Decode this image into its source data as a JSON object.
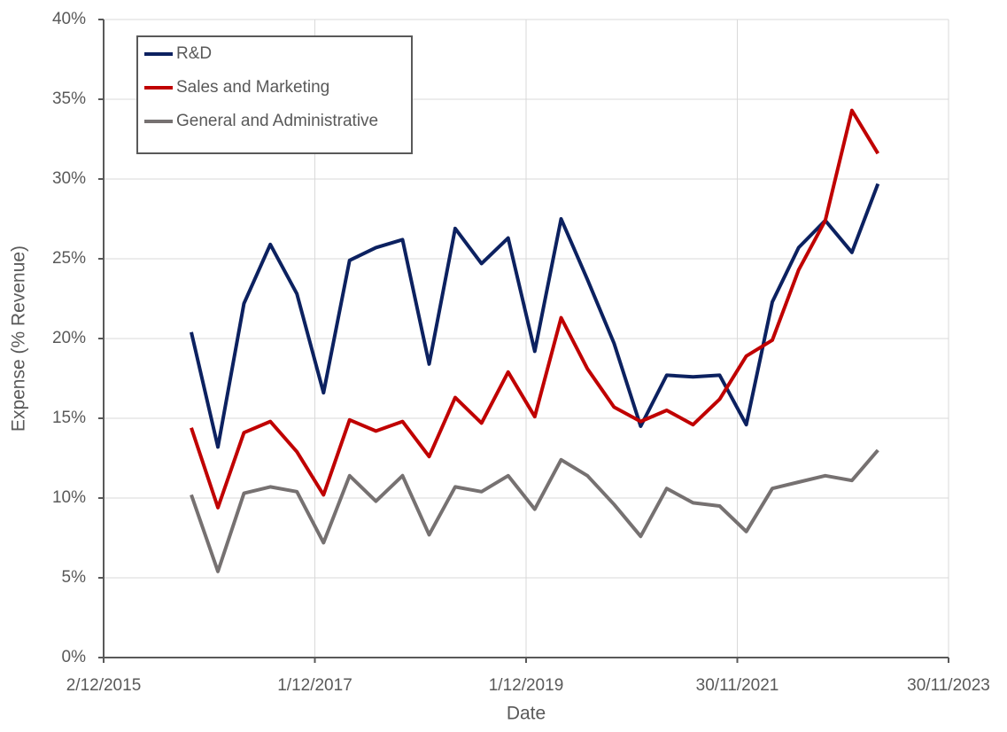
{
  "chart_data": {
    "type": "line",
    "x_label": "Date",
    "y_label": "Expense (% Revenue)",
    "x": [
      "30/09/2016",
      "31/12/2016",
      "31/03/2017",
      "30/06/2017",
      "30/09/2017",
      "31/12/2017",
      "31/03/2018",
      "30/06/2018",
      "30/09/2018",
      "31/12/2018",
      "31/03/2019",
      "30/06/2019",
      "30/09/2019",
      "31/12/2019",
      "31/03/2020",
      "30/06/2020",
      "30/09/2020",
      "31/12/2020",
      "31/03/2021",
      "30/06/2021",
      "30/09/2021",
      "31/12/2021",
      "31/03/2022",
      "30/06/2022",
      "30/09/2022",
      "31/12/2022",
      "31/03/2023"
    ],
    "series": [
      {
        "name": "R&D",
        "color": "#0c2160",
        "values": [
          20.4,
          13.2,
          22.2,
          25.9,
          22.8,
          16.6,
          24.9,
          25.7,
          26.2,
          18.4,
          26.9,
          24.7,
          26.3,
          19.2,
          27.5,
          23.7,
          19.7,
          14.5,
          17.7,
          17.6,
          17.7,
          14.6,
          22.3,
          25.7,
          27.4,
          25.4,
          29.7
        ]
      },
      {
        "name": "Sales and Marketing",
        "color": "#c00000",
        "values": [
          14.4,
          9.4,
          14.1,
          14.8,
          12.9,
          10.2,
          14.9,
          14.2,
          14.8,
          12.6,
          16.3,
          14.7,
          17.9,
          15.1,
          21.3,
          18.1,
          15.7,
          14.8,
          15.5,
          14.6,
          16.2,
          18.9,
          19.9,
          24.3,
          27.4,
          34.3,
          31.6
        ]
      },
      {
        "name": "General and Administrative",
        "color": "#767171",
        "values": [
          10.2,
          5.4,
          10.3,
          10.7,
          10.4,
          7.2,
          11.4,
          9.8,
          11.4,
          7.7,
          10.7,
          10.4,
          11.4,
          9.3,
          12.4,
          11.4,
          9.6,
          7.6,
          10.6,
          9.7,
          9.5,
          7.9,
          10.6,
          11.0,
          11.4,
          11.1,
          13.0
        ]
      }
    ],
    "xlim": [
      "2/12/2015",
      "30/11/2023"
    ],
    "xticks": [
      "2/12/2015",
      "1/12/2017",
      "1/12/2019",
      "30/11/2021",
      "30/11/2023"
    ],
    "ylim": [
      0,
      40
    ],
    "yticks": [
      {
        "value": 0,
        "label": "0%"
      },
      {
        "value": 5,
        "label": "5%"
      },
      {
        "value": 10,
        "label": "10%"
      },
      {
        "value": 15,
        "label": "15%"
      },
      {
        "value": 20,
        "label": "20%"
      },
      {
        "value": 25,
        "label": "25%"
      },
      {
        "value": 30,
        "label": "30%"
      },
      {
        "value": 35,
        "label": "35%"
      },
      {
        "value": 40,
        "label": "40%"
      }
    ],
    "grid": true,
    "legend": "upper left"
  }
}
